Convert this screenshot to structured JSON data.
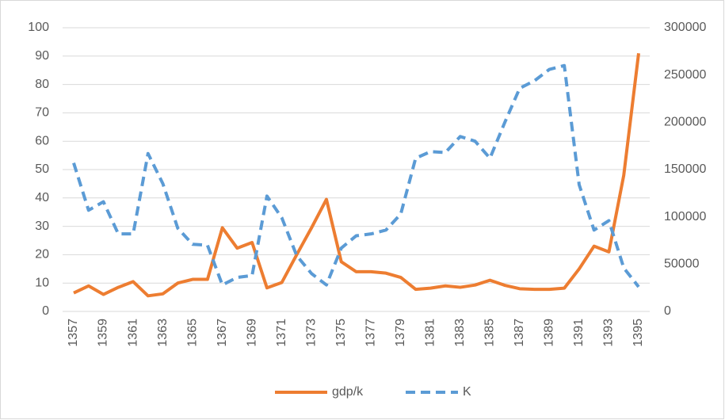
{
  "chart_data": {
    "type": "line",
    "categories": [
      "1357",
      null,
      "1359",
      null,
      "1361",
      null,
      "1363",
      null,
      "1365",
      null,
      "1367",
      null,
      "1369",
      null,
      "1371",
      null,
      "1373",
      null,
      "1375",
      null,
      "1377",
      null,
      "1379",
      null,
      "1381",
      null,
      "1383",
      null,
      "1385",
      null,
      "1387",
      null,
      "1389",
      null,
      "1391",
      null,
      "1393",
      null,
      "1395"
    ],
    "series": [
      {
        "name": "gdp/k",
        "color": "#ed7d31",
        "dashed": false,
        "axis": "y",
        "values": [
          6.5,
          9,
          6,
          8.5,
          10.5,
          5.5,
          6.2,
          10,
          11.3,
          11.3,
          29.5,
          22.3,
          24.3,
          8.3,
          10.2,
          20,
          29.5,
          39.5,
          17.5,
          14,
          14,
          13.5,
          12,
          7.8,
          8.2,
          9,
          8.5,
          9.3,
          11,
          9.2,
          8,
          7.8,
          7.8,
          8.2,
          15,
          23,
          21,
          48,
          91
        ]
      },
      {
        "name": "K",
        "color": "#5b9bd5",
        "dashed": true,
        "axis": "y2",
        "values": [
          157000,
          107000,
          116000,
          82000,
          82000,
          167000,
          135000,
          88000,
          71000,
          70000,
          28000,
          36000,
          38000,
          122000,
          99000,
          59000,
          40000,
          28000,
          67000,
          80000,
          82000,
          86000,
          103000,
          162000,
          169000,
          168000,
          185000,
          180000,
          162000,
          200000,
          236000,
          244000,
          256000,
          260000,
          134000,
          86000,
          96000,
          46000,
          26000
        ]
      }
    ],
    "ylim": [
      0,
      100
    ],
    "yticks": [
      0,
      10,
      20,
      30,
      40,
      50,
      60,
      70,
      80,
      90,
      100
    ],
    "y2lim": [
      0,
      300000
    ],
    "y2ticks": [
      0,
      50000,
      100000,
      150000,
      200000,
      250000,
      300000
    ],
    "grid": true,
    "legend": "bottom"
  }
}
